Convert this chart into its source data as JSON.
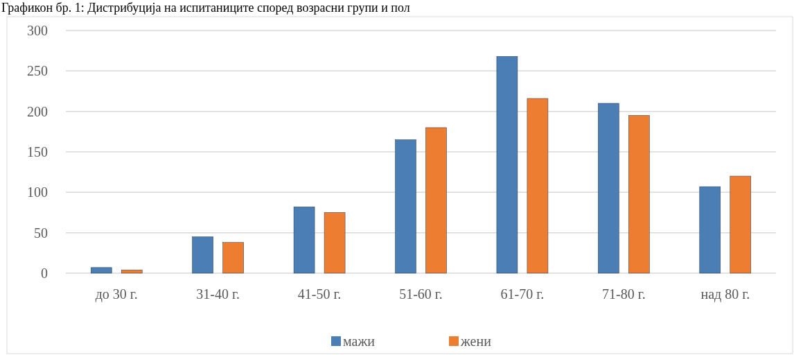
{
  "chart_data": {
    "type": "bar",
    "title": "Графикон бр. 1: Дистрибуција на испитаниците според возрасни групи и пол",
    "categories": [
      "до 30 г.",
      "31-40 г.",
      "41-50 г.",
      "51-60 г.",
      "61-70 г.",
      "71-80 г.",
      "над 80 г."
    ],
    "series": [
      {
        "name": "мажи",
        "color": "#4a7eb4",
        "values": [
          7,
          45,
          82,
          165,
          268,
          210,
          107
        ]
      },
      {
        "name": "жени",
        "color": "#ed7d31",
        "values": [
          4,
          38,
          75,
          180,
          216,
          195,
          120
        ]
      }
    ],
    "ylim": [
      0,
      300
    ],
    "yticks": [
      0,
      50,
      100,
      150,
      200,
      250,
      300
    ],
    "grid": "y",
    "legend": "bottom"
  }
}
